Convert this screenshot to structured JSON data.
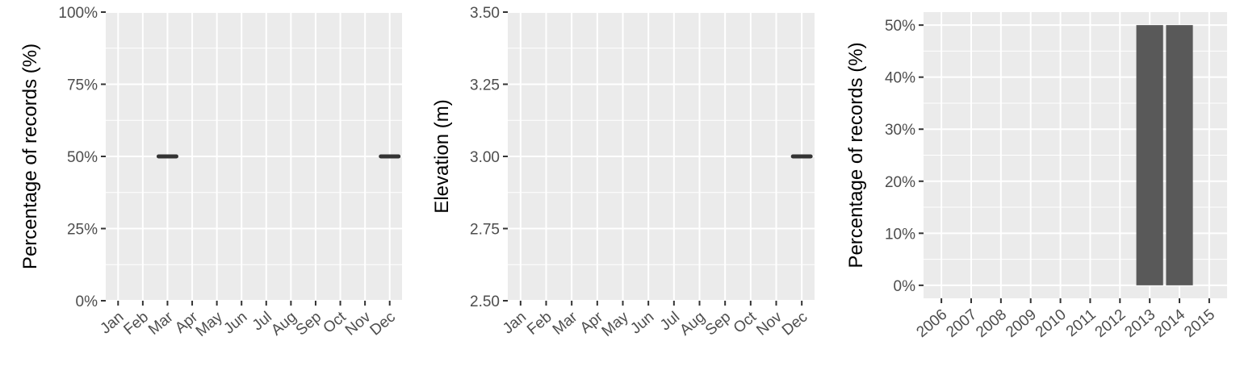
{
  "colors": {
    "panel_background": "#ebebeb",
    "grid": "#ffffff",
    "mark": "#595959",
    "axis_ticks": "#333333",
    "tick_text": "#4d4d4d"
  },
  "chart_data": [
    {
      "type": "line",
      "ylabel": "Percentage of records (%)",
      "xlabel": "",
      "categories": [
        "Jan",
        "Feb",
        "Mar",
        "Apr",
        "May",
        "Jun",
        "Jul",
        "Aug",
        "Sep",
        "Oct",
        "Nov",
        "Dec"
      ],
      "ylim": [
        0,
        100
      ],
      "yticks": [
        "0%",
        "25%",
        "50%",
        "75%",
        "100%"
      ],
      "ytick_values": [
        0,
        25,
        50,
        75,
        100
      ],
      "grid": true,
      "series": [
        {
          "values": [
            null,
            null,
            50,
            null,
            null,
            null,
            null,
            null,
            null,
            null,
            null,
            50
          ]
        }
      ]
    },
    {
      "type": "line",
      "ylabel": "Elevation (m)",
      "xlabel": "",
      "categories": [
        "Jan",
        "Feb",
        "Mar",
        "Apr",
        "May",
        "Jun",
        "Jul",
        "Aug",
        "Sep",
        "Oct",
        "Nov",
        "Dec"
      ],
      "ylim": [
        2.5,
        3.5
      ],
      "yticks": [
        "2.50",
        "2.75",
        "3.00",
        "3.25",
        "3.50"
      ],
      "ytick_values": [
        2.5,
        2.75,
        3.0,
        3.25,
        3.5
      ],
      "grid": true,
      "series": [
        {
          "values": [
            null,
            null,
            null,
            null,
            null,
            null,
            null,
            null,
            null,
            null,
            null,
            3.0
          ]
        }
      ]
    },
    {
      "type": "bar",
      "ylabel": "Percentage of records (%)",
      "xlabel": "",
      "categories": [
        "2006",
        "2007",
        "2008",
        "2009",
        "2010",
        "2011",
        "2012",
        "2013",
        "2014",
        "2015"
      ],
      "values": [
        0,
        0,
        0,
        0,
        0,
        0,
        0,
        50,
        50,
        0
      ],
      "ylim": [
        -2.5,
        52.5
      ],
      "yticks": [
        "0%",
        "10%",
        "20%",
        "30%",
        "40%",
        "50%"
      ],
      "ytick_values": [
        0,
        10,
        20,
        30,
        40,
        50
      ],
      "grid": true
    }
  ]
}
